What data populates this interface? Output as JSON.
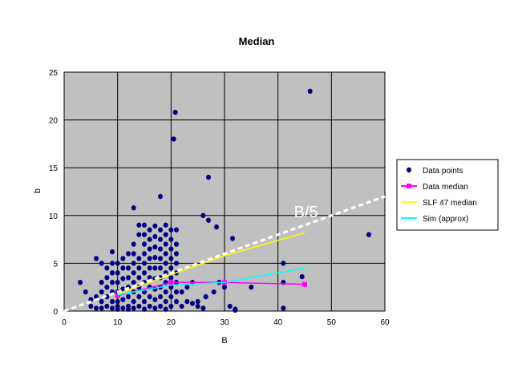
{
  "chart_data": {
    "type": "scatter",
    "title": "Median",
    "xlabel": "B",
    "ylabel": "b",
    "xlim": [
      0,
      60
    ],
    "ylim": [
      0,
      25
    ],
    "xticks": [
      0,
      10,
      20,
      30,
      40,
      50,
      60
    ],
    "yticks": [
      0,
      5,
      10,
      15,
      20,
      25
    ],
    "grid": true,
    "legend_position": "right",
    "plot_background": "#c0c0c0",
    "annotation": "B/5",
    "series": [
      {
        "name": "Data points",
        "type": "scatter",
        "color": "#000080",
        "points": [
          [
            3,
            3
          ],
          [
            4,
            2
          ],
          [
            5,
            0.5
          ],
          [
            5,
            1.2
          ],
          [
            6,
            0.3
          ],
          [
            6,
            1.5
          ],
          [
            6,
            5.5
          ],
          [
            7,
            0.3
          ],
          [
            7,
            1
          ],
          [
            7,
            2
          ],
          [
            7,
            3
          ],
          [
            7,
            5
          ],
          [
            8,
            0.5
          ],
          [
            8,
            1.5
          ],
          [
            8,
            2.5
          ],
          [
            8,
            3.5
          ],
          [
            8,
            4.5
          ],
          [
            9,
            0.3
          ],
          [
            9,
            1
          ],
          [
            9,
            2
          ],
          [
            9,
            3
          ],
          [
            9,
            4
          ],
          [
            9,
            5
          ],
          [
            9,
            6.2
          ],
          [
            10,
            0.2
          ],
          [
            10,
            1
          ],
          [
            10,
            2
          ],
          [
            10,
            3
          ],
          [
            10,
            4
          ],
          [
            10,
            5
          ],
          [
            10,
            0.5
          ],
          [
            11,
            0.3
          ],
          [
            11,
            1.2
          ],
          [
            11,
            2.3
          ],
          [
            11,
            3.4
          ],
          [
            11,
            4.5
          ],
          [
            11,
            5.5
          ],
          [
            12,
            0.5
          ],
          [
            12,
            1.5
          ],
          [
            12,
            2.5
          ],
          [
            12,
            3.5
          ],
          [
            12,
            4.5
          ],
          [
            12,
            6
          ],
          [
            12,
            0.2
          ],
          [
            13,
            0.3
          ],
          [
            13,
            1
          ],
          [
            13,
            2
          ],
          [
            13,
            3
          ],
          [
            13,
            4
          ],
          [
            13,
            5
          ],
          [
            13,
            6
          ],
          [
            13,
            7
          ],
          [
            13,
            10.8
          ],
          [
            14,
            0.5
          ],
          [
            14,
            1.5
          ],
          [
            14,
            2.5
          ],
          [
            14,
            3.5
          ],
          [
            14,
            4.5
          ],
          [
            14,
            5.5
          ],
          [
            14,
            8
          ],
          [
            14,
            9
          ],
          [
            15,
            0.2
          ],
          [
            15,
            1
          ],
          [
            15,
            2
          ],
          [
            15,
            3
          ],
          [
            15,
            4
          ],
          [
            15,
            5
          ],
          [
            15,
            6
          ],
          [
            15,
            7
          ],
          [
            15,
            8
          ],
          [
            15,
            9
          ],
          [
            16,
            0.5
          ],
          [
            16,
            1.5
          ],
          [
            16,
            2.5
          ],
          [
            16,
            3.5
          ],
          [
            16,
            4.5
          ],
          [
            16,
            5.5
          ],
          [
            16,
            6.5
          ],
          [
            16,
            7.5
          ],
          [
            16,
            8.5
          ],
          [
            17,
            0.3
          ],
          [
            17,
            1.2
          ],
          [
            17,
            2.3
          ],
          [
            17,
            3.4
          ],
          [
            17,
            4.5
          ],
          [
            17,
            5.6
          ],
          [
            17,
            6.7
          ],
          [
            17,
            7.8
          ],
          [
            17,
            8.9
          ],
          [
            18,
            0.5
          ],
          [
            18,
            1.5
          ],
          [
            18,
            2.5
          ],
          [
            18,
            3.5
          ],
          [
            18,
            4.5
          ],
          [
            18,
            5.5
          ],
          [
            18,
            6.5
          ],
          [
            18,
            7.5
          ],
          [
            18,
            8.5
          ],
          [
            18,
            12
          ],
          [
            19,
            0.2
          ],
          [
            19,
            1
          ],
          [
            19,
            2
          ],
          [
            19,
            3
          ],
          [
            19,
            4
          ],
          [
            19,
            5
          ],
          [
            19,
            6
          ],
          [
            19,
            7
          ],
          [
            19,
            8
          ],
          [
            19,
            9
          ],
          [
            20,
            0.5
          ],
          [
            20,
            1.5
          ],
          [
            20,
            2.5
          ],
          [
            20,
            3.5
          ],
          [
            20,
            4.5
          ],
          [
            20,
            5.5
          ],
          [
            20,
            6.5
          ],
          [
            20,
            7.5
          ],
          [
            20,
            8.5
          ],
          [
            20.5,
            18
          ],
          [
            20.8,
            20.8
          ],
          [
            21,
            1
          ],
          [
            21,
            2
          ],
          [
            21,
            3
          ],
          [
            21,
            4
          ],
          [
            21,
            5
          ],
          [
            21,
            6
          ],
          [
            21,
            7
          ],
          [
            21,
            8.5
          ],
          [
            22,
            0.5
          ],
          [
            22,
            2
          ],
          [
            23,
            1
          ],
          [
            23,
            2.5
          ],
          [
            24,
            0.8
          ],
          [
            24,
            3
          ],
          [
            25,
            0.5
          ],
          [
            25,
            1
          ],
          [
            26,
            0.3
          ],
          [
            26,
            10
          ],
          [
            26.5,
            1.5
          ],
          [
            27,
            14
          ],
          [
            27,
            9.5
          ],
          [
            28,
            2
          ],
          [
            28.5,
            8.8
          ],
          [
            29,
            3
          ],
          [
            30,
            2.5
          ],
          [
            31,
            0.5
          ],
          [
            31.5,
            7.6
          ],
          [
            32,
            0.2
          ],
          [
            32,
            0.1
          ],
          [
            35,
            2.5
          ],
          [
            41,
            5
          ],
          [
            41,
            3
          ],
          [
            41,
            0.3
          ],
          [
            44.5,
            3.6
          ],
          [
            46,
            23
          ],
          [
            57,
            8
          ]
        ]
      },
      {
        "name": "Data median",
        "type": "line",
        "color": "#ff00ff",
        "points": [
          [
            10,
            1.6
          ],
          [
            20,
            3
          ],
          [
            30,
            3
          ],
          [
            45,
            2.8
          ]
        ]
      },
      {
        "name": "SLF 47 median",
        "type": "line",
        "color": "#ffff00",
        "points": [
          [
            10,
            1.8
          ],
          [
            20,
            3.8
          ],
          [
            30,
            5.8
          ],
          [
            45,
            8.2
          ]
        ]
      },
      {
        "name": "Sim (approx)",
        "type": "line",
        "color": "#00ffff",
        "points": [
          [
            10,
            1.7
          ],
          [
            20,
            2.7
          ],
          [
            30,
            3
          ],
          [
            45,
            4.5
          ]
        ]
      },
      {
        "name": "B/5",
        "type": "line",
        "color": "#ffffff",
        "dashed": true,
        "points": [
          [
            0,
            0
          ],
          [
            60,
            12
          ]
        ]
      }
    ],
    "legend_entries": [
      "Data points",
      "Data median",
      "SLF 47 median",
      "Sim (approx)"
    ]
  }
}
